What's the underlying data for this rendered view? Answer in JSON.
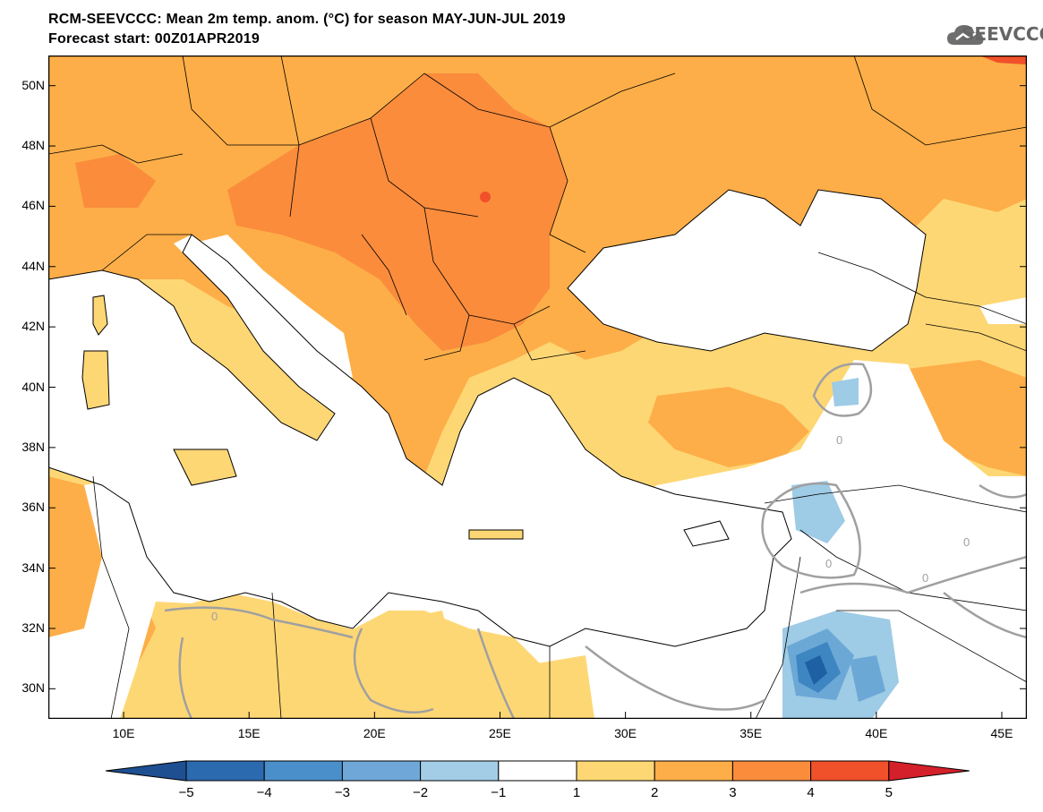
{
  "header": {
    "title": "RCM-SEEVCCC: Mean 2m temp. anom. (°C) for season MAY-JUN-JUL 2019",
    "subtitle": "Forecast start: 00Z01APR2019",
    "logo_text": "SEEVCCC"
  },
  "map": {
    "lon_range": [
      7,
      46
    ],
    "lat_range": [
      29,
      51
    ],
    "lon_ticks": [
      "10E",
      "15E",
      "20E",
      "25E",
      "30E",
      "35E",
      "40E",
      "45E"
    ],
    "lat_ticks": [
      "30N",
      "32N",
      "34N",
      "36N",
      "38N",
      "40N",
      "42N",
      "44N",
      "46N",
      "48N",
      "50N"
    ],
    "contour_label": "0",
    "colors": {
      "sea": "#ffffff",
      "c1_2": "#fed775",
      "c2_3": "#fdae48",
      "c3_4": "#fa8c3c",
      "c4_5": "#f0502a",
      "cm1_m2": "#9ecbe5",
      "cm2_m3": "#6ca8d6",
      "cm3_m4": "#3d86c2",
      "cm4_m5": "#1f5fa3",
      "zero_contour": "#a0a0a0"
    }
  },
  "legend": {
    "labels": [
      "−5",
      "−4",
      "−3",
      "−2",
      "−1",
      "1",
      "2",
      "3",
      "4",
      "5"
    ],
    "colors": [
      "#1e4f91",
      "#2c6aaf",
      "#4a8fca",
      "#6fa8d8",
      "#a3cde7",
      "#ffffff",
      "#fed775",
      "#fdae48",
      "#fa8c3c",
      "#f0502a",
      "#d4202a"
    ]
  }
}
